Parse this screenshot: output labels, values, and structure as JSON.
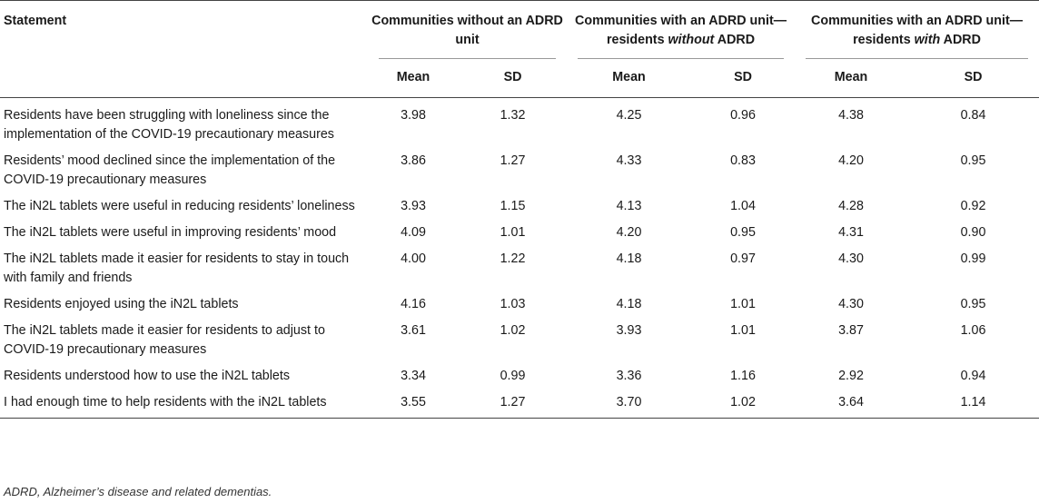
{
  "header": {
    "statement_label": "Statement",
    "group1": {
      "text": "Communities without an ADRD unit"
    },
    "group2": {
      "pre": "Communities with an ADRD unit—residents ",
      "emph": "without",
      "post": " ADRD"
    },
    "group3": {
      "pre": "Communities with an ADRD unit—residents ",
      "emph": "with",
      "post": " ADRD"
    },
    "mean_label": "Mean",
    "sd_label": "SD"
  },
  "rows": [
    {
      "statement": "Residents have been struggling with loneliness since the implementation of the COVID-19 precautionary measures",
      "v": [
        "3.98",
        "1.32",
        "4.25",
        "0.96",
        "4.38",
        "0.84"
      ]
    },
    {
      "statement": "Residents’ mood declined since the implementation of the COVID-19 precautionary measures",
      "v": [
        "3.86",
        "1.27",
        "4.33",
        "0.83",
        "4.20",
        "0.95"
      ]
    },
    {
      "statement": "The iN2L tablets were useful in reducing residents’ loneliness",
      "v": [
        "3.93",
        "1.15",
        "4.13",
        "1.04",
        "4.28",
        "0.92"
      ]
    },
    {
      "statement": "The iN2L tablets were useful in improving residents’ mood",
      "v": [
        "4.09",
        "1.01",
        "4.20",
        "0.95",
        "4.31",
        "0.90"
      ]
    },
    {
      "statement": "The iN2L tablets made it easier for residents to stay in touch with family and friends",
      "v": [
        "4.00",
        "1.22",
        "4.18",
        "0.97",
        "4.30",
        "0.99"
      ]
    },
    {
      "statement": "Residents enjoyed using the iN2L tablets",
      "v": [
        "4.16",
        "1.03",
        "4.18",
        "1.01",
        "4.30",
        "0.95"
      ]
    },
    {
      "statement": "The iN2L tablets made it easier for residents to adjust to COVID-19 precautionary measures",
      "v": [
        "3.61",
        "1.02",
        "3.93",
        "1.01",
        "3.87",
        "1.06"
      ]
    },
    {
      "statement": "Residents understood how to use the iN2L tablets",
      "v": [
        "3.34",
        "0.99",
        "3.36",
        "1.16",
        "2.92",
        "0.94"
      ]
    },
    {
      "statement": "I had enough time to help residents with the iN2L tablets",
      "v": [
        "3.55",
        "1.27",
        "3.70",
        "1.02",
        "3.64",
        "1.14"
      ]
    }
  ],
  "footnote": "ADRD, Alzheimer’s disease and related dementias."
}
